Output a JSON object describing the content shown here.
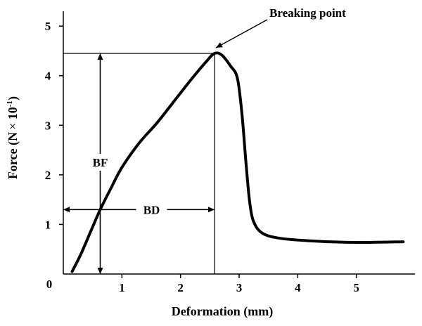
{
  "chart_data": {
    "type": "line",
    "xlabel": "Deformation (mm)",
    "ylabel_main": "Force (N",
    "ylabel_times": "×",
    "ylabel_base": " 10",
    "ylabel_exp": "-1",
    "ylabel_close": ")",
    "xlim": [
      0,
      6
    ],
    "ylim": [
      0,
      5.3
    ],
    "x_ticks": [
      {
        "value": 1,
        "label": "1"
      },
      {
        "value": 2,
        "label": "2"
      },
      {
        "value": 3,
        "label": "3"
      },
      {
        "value": 4,
        "label": "4"
      },
      {
        "value": 5,
        "label": "5"
      }
    ],
    "y_ticks": [
      {
        "value": 1,
        "label": "1"
      },
      {
        "value": 2,
        "label": "2"
      },
      {
        "value": 3,
        "label": "3"
      },
      {
        "value": 4,
        "label": "4"
      },
      {
        "value": 5,
        "label": "5"
      }
    ],
    "origin_label": "0",
    "series": [
      {
        "points": [
          [
            0.15,
            0.05
          ],
          [
            0.3,
            0.4
          ],
          [
            0.5,
            0.95
          ],
          [
            0.63,
            1.3
          ],
          [
            0.8,
            1.7
          ],
          [
            1.0,
            2.15
          ],
          [
            1.3,
            2.65
          ],
          [
            1.6,
            3.05
          ],
          [
            1.9,
            3.5
          ],
          [
            2.2,
            3.95
          ],
          [
            2.45,
            4.3
          ],
          [
            2.58,
            4.45
          ],
          [
            2.7,
            4.42
          ],
          [
            2.85,
            4.2
          ],
          [
            2.97,
            3.95
          ],
          [
            3.05,
            3.2
          ],
          [
            3.12,
            2.2
          ],
          [
            3.18,
            1.45
          ],
          [
            3.25,
            1.05
          ],
          [
            3.4,
            0.82
          ],
          [
            3.7,
            0.72
          ],
          [
            4.2,
            0.67
          ],
          [
            4.8,
            0.64
          ],
          [
            5.3,
            0.64
          ],
          [
            5.8,
            0.65
          ]
        ]
      }
    ],
    "annotations": {
      "breaking_point": {
        "label": "Breaking point",
        "x": 2.58,
        "y": 4.45
      },
      "bf": {
        "label": "BF",
        "x": 0.63,
        "y_from": 0,
        "y_to": 4.45
      },
      "bd": {
        "label": "BD",
        "y": 1.3,
        "x_from": 0,
        "x_to": 2.58
      }
    }
  }
}
